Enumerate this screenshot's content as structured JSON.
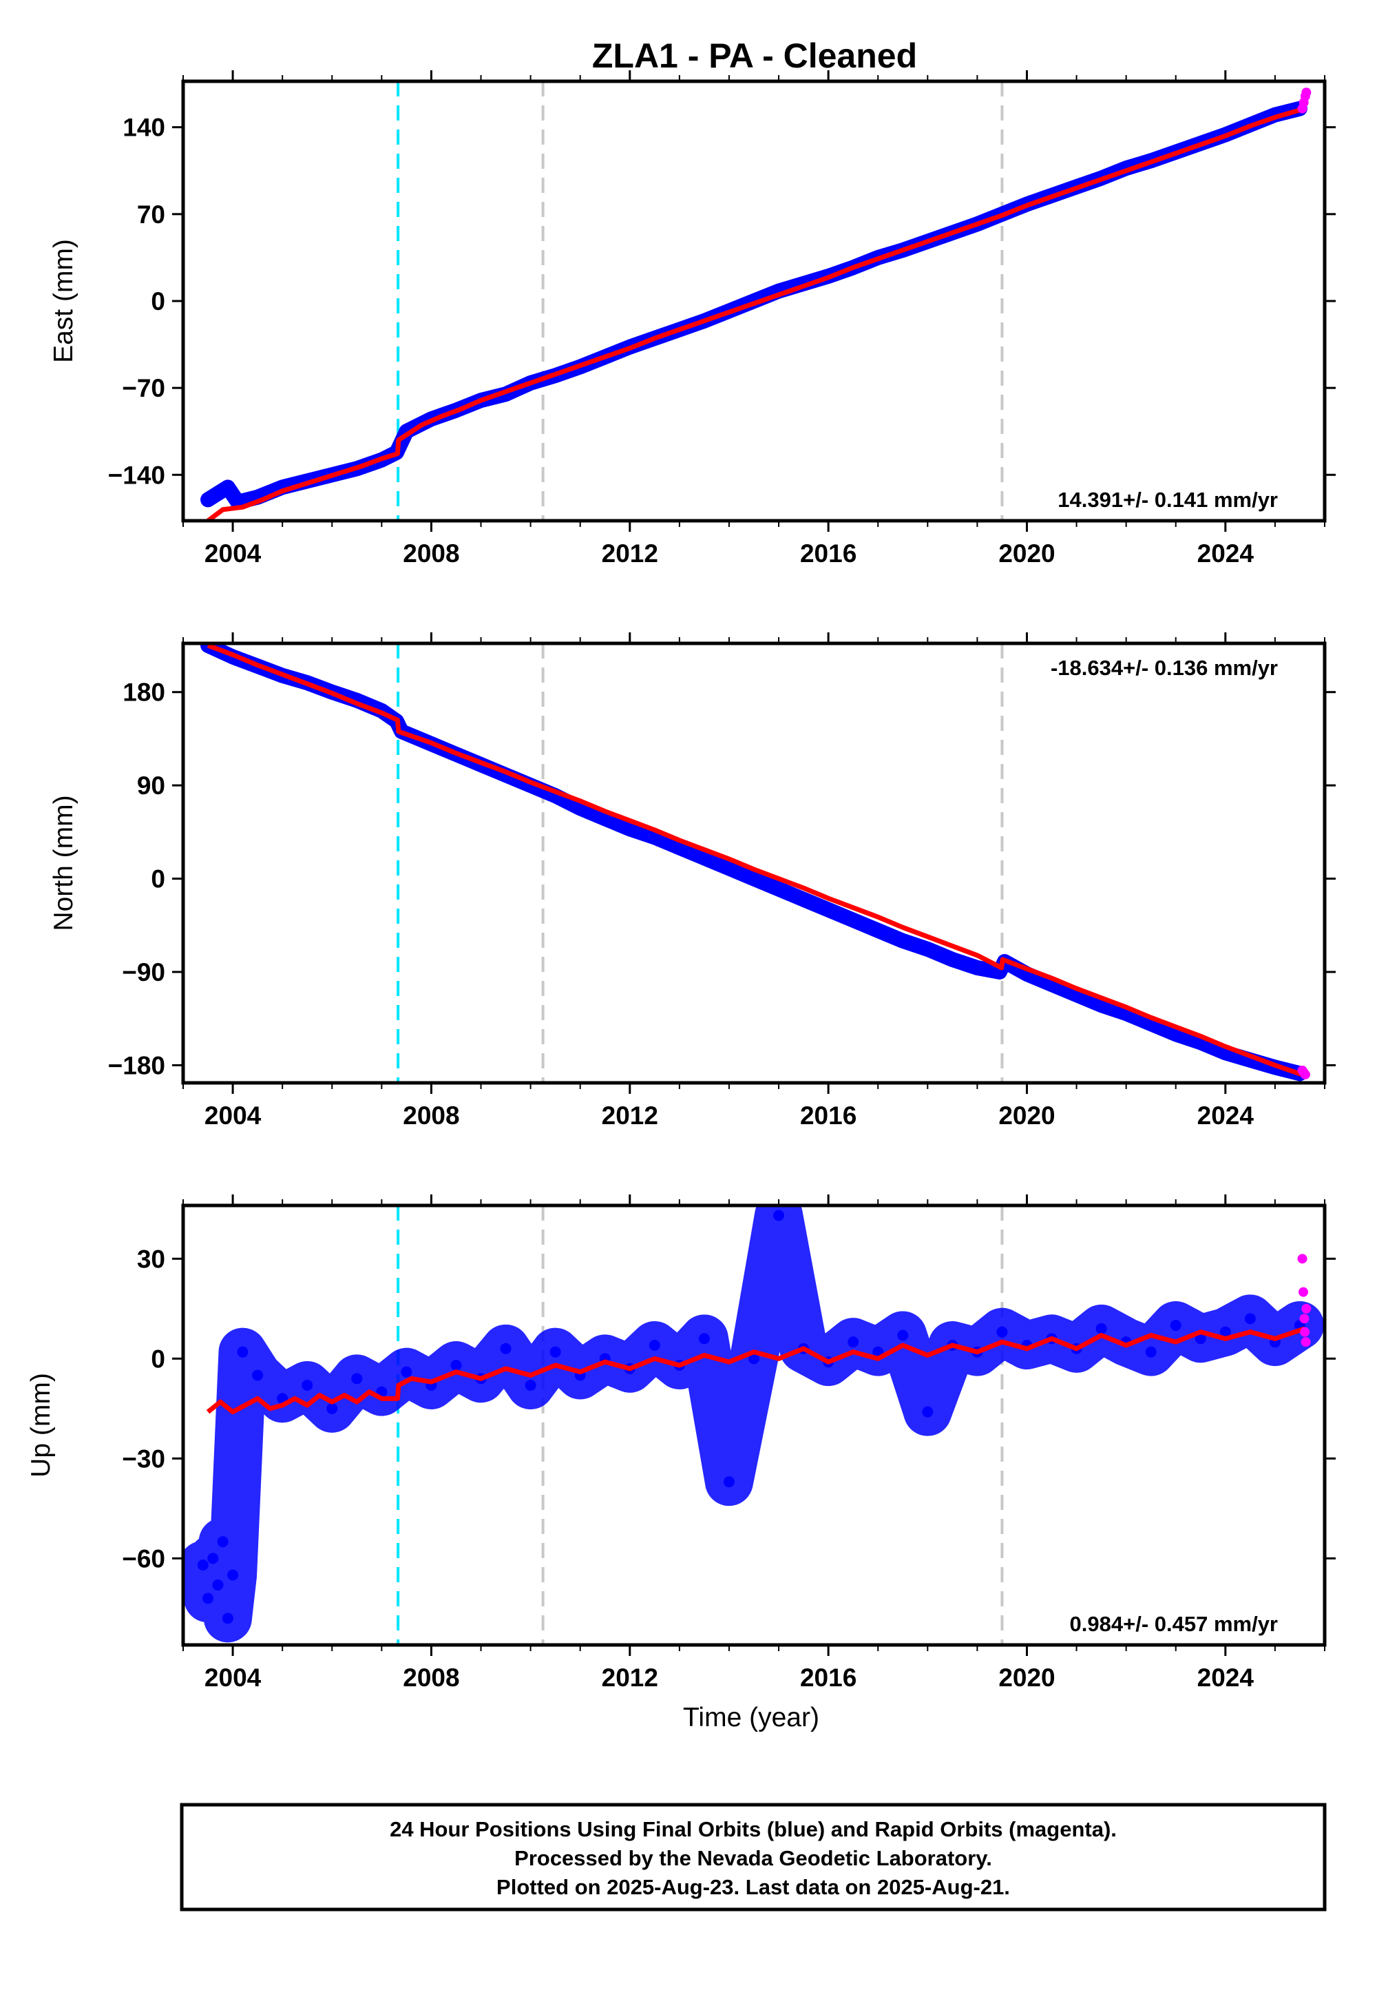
{
  "title": "ZLA1  - PA - Cleaned",
  "colors": {
    "final": "#0000ff",
    "rapid": "#ff00ff",
    "model": "#ff0000",
    "primary_event": "#00e5ff",
    "secondary_event": "#c8c8c8"
  },
  "chart_data": [
    {
      "type": "scatter",
      "ylabel": "East (mm)",
      "xlabel": "",
      "xlim": [
        2003.0,
        2026.0
      ],
      "ylim": [
        -177,
        177
      ],
      "xticks": [
        "2004",
        "2008",
        "2012",
        "2016",
        "2020",
        "2024"
      ],
      "yticks": [
        "-140",
        "-70",
        "0",
        "70",
        "140"
      ],
      "vlines": [
        {
          "x": 2007.33,
          "kind": "primary"
        },
        {
          "x": 2010.25,
          "kind": "secondary"
        },
        {
          "x": 2019.5,
          "kind": "secondary"
        }
      ],
      "rate": "14.391+/- 0.141 mm/yr",
      "rate_position": "bottom-right",
      "grid": false,
      "legend": "none",
      "series": [
        {
          "role": "final_orbits",
          "color": "#0000ff",
          "x": [
            2003.5,
            2003.7,
            2003.9,
            2004.1,
            2004.5,
            2005.0,
            2005.5,
            2006.0,
            2006.5,
            2007.0,
            2007.3,
            2007.5,
            2008.0,
            2008.5,
            2009.0,
            2009.5,
            2010.0,
            2010.5,
            2011.0,
            2011.5,
            2012.0,
            2012.5,
            2013.0,
            2013.5,
            2014.0,
            2014.5,
            2015.0,
            2015.5,
            2016.0,
            2016.5,
            2017.0,
            2017.5,
            2018.0,
            2018.5,
            2019.0,
            2019.5,
            2020.0,
            2020.5,
            2021.0,
            2021.5,
            2022.0,
            2022.5,
            2023.0,
            2023.5,
            2024.0,
            2024.5,
            2025.0,
            2025.5
          ],
          "y": [
            -160,
            -155,
            -150,
            -162,
            -158,
            -150,
            -145,
            -140,
            -135,
            -128,
            -122,
            -105,
            -95,
            -88,
            -80,
            -75,
            -66,
            -60,
            -53,
            -45,
            -37,
            -30,
            -23,
            -16,
            -8,
            0,
            8,
            14,
            20,
            27,
            35,
            41,
            48,
            55,
            62,
            70,
            78,
            85,
            92,
            99,
            107,
            113,
            120,
            127,
            134,
            142,
            150,
            155
          ]
        },
        {
          "role": "rapid_orbits",
          "color": "#ff00ff",
          "x": [
            2025.55,
            2025.58,
            2025.61,
            2025.63
          ],
          "y": [
            155,
            160,
            165,
            168
          ]
        },
        {
          "role": "model",
          "color": "#ff0000",
          "x": [
            2003.5,
            2003.8,
            2004.2,
            2004.6,
            2005.0,
            2005.4,
            2005.8,
            2006.2,
            2006.6,
            2007.0,
            2007.32,
            2007.34,
            2007.8,
            2008.2,
            2008.6,
            2009.0,
            2009.5,
            2010.0,
            2010.5,
            2011.0,
            2011.5,
            2012.0,
            2012.5,
            2013.0,
            2013.5,
            2014.0,
            2014.5,
            2015.0,
            2015.5,
            2016.0,
            2016.5,
            2017.0,
            2017.5,
            2018.0,
            2018.5,
            2019.0,
            2019.5,
            2020.0,
            2020.5,
            2021.0,
            2021.5,
            2022.0,
            2022.5,
            2023.0,
            2023.5,
            2024.0,
            2024.5,
            2025.0,
            2025.6
          ],
          "y": [
            -177,
            -168,
            -166,
            -160,
            -153,
            -148,
            -143,
            -138,
            -133,
            -127,
            -123,
            -112,
            -100,
            -93,
            -87,
            -80,
            -73,
            -66,
            -59,
            -52,
            -45,
            -38,
            -30,
            -23,
            -16,
            -9,
            -2,
            5,
            12,
            19,
            27,
            34,
            41,
            48,
            55,
            62,
            69,
            77,
            84,
            91,
            98,
            105,
            112,
            119,
            126,
            133,
            141,
            148,
            155
          ]
        }
      ]
    },
    {
      "type": "scatter",
      "ylabel": "North (mm)",
      "xlabel": "",
      "xlim": [
        2003.0,
        2026.0
      ],
      "ylim": [
        -197,
        227
      ],
      "xticks": [
        "2004",
        "2008",
        "2012",
        "2016",
        "2020",
        "2024"
      ],
      "yticks": [
        "-180",
        "-90",
        "0",
        "90",
        "180"
      ],
      "vlines": [
        {
          "x": 2007.33,
          "kind": "primary"
        },
        {
          "x": 2010.25,
          "kind": "secondary"
        },
        {
          "x": 2019.5,
          "kind": "secondary"
        }
      ],
      "rate": "-18.634+/- 0.136 mm/yr",
      "rate_position": "top-right",
      "grid": false,
      "legend": "none",
      "series": [
        {
          "role": "final_orbits",
          "color": "#0000ff",
          "x": [
            2003.5,
            2004.0,
            2004.5,
            2005.0,
            2005.5,
            2006.0,
            2006.5,
            2007.0,
            2007.3,
            2007.4,
            2008.0,
            2008.5,
            2009.0,
            2009.5,
            2010.0,
            2010.5,
            2011.0,
            2011.5,
            2012.0,
            2012.5,
            2013.0,
            2013.5,
            2014.0,
            2014.5,
            2015.0,
            2015.5,
            2016.0,
            2016.5,
            2017.0,
            2017.5,
            2018.0,
            2018.5,
            2019.0,
            2019.45,
            2019.55,
            2020.0,
            2020.5,
            2021.0,
            2021.5,
            2022.0,
            2022.5,
            2023.0,
            2023.5,
            2024.0,
            2024.5,
            2025.0,
            2025.5
          ],
          "y": [
            225,
            214,
            205,
            196,
            189,
            180,
            172,
            162,
            152,
            142,
            130,
            120,
            110,
            100,
            90,
            80,
            68,
            58,
            48,
            40,
            30,
            20,
            10,
            0,
            -10,
            -20,
            -30,
            -40,
            -50,
            -60,
            -68,
            -78,
            -86,
            -90,
            -80,
            -92,
            -102,
            -112,
            -122,
            -130,
            -140,
            -150,
            -158,
            -168,
            -175,
            -182,
            -188
          ]
        },
        {
          "role": "rapid_orbits",
          "color": "#ff00ff",
          "x": [
            2025.55,
            2025.58,
            2025.61
          ],
          "y": [
            -185,
            -187,
            -189
          ]
        },
        {
          "role": "model",
          "color": "#ff0000",
          "x": [
            2003.5,
            2004.0,
            2004.5,
            2005.0,
            2005.5,
            2006.0,
            2006.5,
            2007.0,
            2007.32,
            2007.34,
            2008.0,
            2008.5,
            2009.0,
            2009.5,
            2010.0,
            2010.5,
            2011.0,
            2011.5,
            2012.0,
            2012.5,
            2013.0,
            2013.5,
            2014.0,
            2014.5,
            2015.0,
            2015.5,
            2016.0,
            2016.5,
            2017.0,
            2017.5,
            2018.0,
            2018.5,
            2019.0,
            2019.49,
            2019.51,
            2020.0,
            2020.5,
            2021.0,
            2021.5,
            2022.0,
            2022.5,
            2023.0,
            2023.5,
            2024.0,
            2024.5,
            2025.0,
            2025.6
          ],
          "y": [
            225,
            216,
            206,
            197,
            188,
            179,
            169,
            160,
            153,
            142,
            131,
            121,
            112,
            103,
            93,
            84,
            75,
            65,
            56,
            47,
            37,
            28,
            19,
            9,
            0,
            -9,
            -19,
            -28,
            -37,
            -47,
            -56,
            -65,
            -74,
            -86,
            -78,
            -87,
            -96,
            -106,
            -115,
            -124,
            -134,
            -143,
            -152,
            -162,
            -171,
            -180,
            -190
          ]
        }
      ]
    },
    {
      "type": "scatter",
      "ylabel": "Up (mm)",
      "xlabel": "Time (year)",
      "xlim": [
        2003.0,
        2026.0
      ],
      "ylim": [
        -86,
        46
      ],
      "xticks": [
        "2004",
        "2008",
        "2012",
        "2016",
        "2020",
        "2024"
      ],
      "yticks": [
        "-60",
        "-30",
        "0",
        "30"
      ],
      "vlines": [
        {
          "x": 2007.33,
          "kind": "primary"
        },
        {
          "x": 2010.25,
          "kind": "secondary"
        },
        {
          "x": 2019.5,
          "kind": "secondary"
        }
      ],
      "rate": "0.984+/- 0.457 mm/yr",
      "rate_position": "bottom-right",
      "grid": false,
      "legend": "none",
      "series": [
        {
          "role": "final_orbits",
          "color": "#0000ff",
          "x": [
            2003.4,
            2003.5,
            2003.6,
            2003.7,
            2003.8,
            2003.9,
            2004.0,
            2004.2,
            2004.5,
            2005.0,
            2005.5,
            2006.0,
            2006.5,
            2007.0,
            2007.5,
            2008.0,
            2008.5,
            2009.0,
            2009.5,
            2010.0,
            2010.5,
            2011.0,
            2011.5,
            2012.0,
            2012.5,
            2013.0,
            2013.5,
            2014.0,
            2014.5,
            2015.0,
            2015.5,
            2016.0,
            2016.5,
            2017.0,
            2017.5,
            2018.0,
            2018.5,
            2019.0,
            2019.5,
            2020.0,
            2020.5,
            2021.0,
            2021.5,
            2022.0,
            2022.5,
            2023.0,
            2023.5,
            2024.0,
            2024.5,
            2025.0,
            2025.5
          ],
          "y": [
            -62,
            -72,
            -60,
            -68,
            -55,
            -78,
            -65,
            2,
            -5,
            -12,
            -8,
            -15,
            -6,
            -10,
            -4,
            -8,
            -2,
            -6,
            3,
            -8,
            2,
            -5,
            0,
            -3,
            4,
            -2,
            6,
            -37,
            0,
            43,
            3,
            -1,
            5,
            2,
            7,
            -16,
            4,
            2,
            8,
            4,
            6,
            3,
            9,
            5,
            2,
            10,
            6,
            8,
            12,
            5,
            10
          ]
        },
        {
          "role": "rapid_orbits",
          "color": "#ff00ff",
          "x": [
            2025.55,
            2025.57,
            2025.59,
            2025.6,
            2025.62,
            2025.63
          ],
          "y": [
            30,
            20,
            12,
            8,
            5,
            15
          ]
        },
        {
          "role": "model",
          "color": "#ff0000",
          "x": [
            2003.5,
            2003.75,
            2004.0,
            2004.25,
            2004.5,
            2004.75,
            2005.0,
            2005.25,
            2005.5,
            2005.75,
            2006.0,
            2006.25,
            2006.5,
            2006.75,
            2007.0,
            2007.32,
            2007.34,
            2007.6,
            2008.0,
            2008.5,
            2009.0,
            2009.5,
            2010.0,
            2010.5,
            2011.0,
            2011.5,
            2012.0,
            2012.5,
            2013.0,
            2013.5,
            2014.0,
            2014.5,
            2015.0,
            2015.5,
            2016.0,
            2016.5,
            2017.0,
            2017.5,
            2018.0,
            2018.5,
            2019.0,
            2019.5,
            2020.0,
            2020.5,
            2021.0,
            2021.5,
            2022.0,
            2022.5,
            2023.0,
            2023.5,
            2024.0,
            2024.5,
            2025.0,
            2025.6
          ],
          "y": [
            -16,
            -13,
            -16,
            -14,
            -12,
            -15,
            -14,
            -12,
            -14,
            -11,
            -13,
            -11,
            -13,
            -10,
            -12,
            -12,
            -8,
            -6,
            -7,
            -4,
            -6,
            -3,
            -5,
            -2,
            -4,
            -1,
            -3,
            0,
            -2,
            1,
            -1,
            2,
            0,
            3,
            -1,
            2,
            0,
            4,
            1,
            4,
            2,
            5,
            3,
            6,
            3,
            7,
            4,
            7,
            5,
            8,
            6,
            8,
            6,
            9
          ]
        }
      ]
    }
  ],
  "footer": {
    "line1": "24 Hour Positions Using Final Orbits (blue) and Rapid Orbits (magenta).",
    "line2": "Processed by the Nevada Geodetic Laboratory.",
    "line3": "Plotted on 2025-Aug-23. Last data on 2025-Aug-21."
  }
}
